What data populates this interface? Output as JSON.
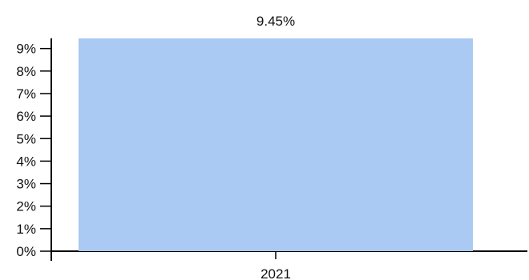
{
  "chart_data": {
    "type": "bar",
    "categories": [
      "2021"
    ],
    "values": [
      9.45
    ],
    "data_labels": [
      "9.45%"
    ],
    "title": "",
    "xlabel": "",
    "ylabel": "",
    "ylim": [
      0,
      9.45
    ],
    "y_ticks": [
      {
        "value": 0,
        "label": "0%"
      },
      {
        "value": 1,
        "label": "1%"
      },
      {
        "value": 2,
        "label": "2%"
      },
      {
        "value": 3,
        "label": "3%"
      },
      {
        "value": 4,
        "label": "4%"
      },
      {
        "value": 5,
        "label": "5%"
      },
      {
        "value": 6,
        "label": "6%"
      },
      {
        "value": 7,
        "label": "7%"
      },
      {
        "value": 8,
        "label": "8%"
      },
      {
        "value": 9,
        "label": "9%"
      }
    ],
    "grid": false,
    "legend": "none",
    "colors": {
      "bar": "#aac9f3",
      "axis": "#000000",
      "text": "#111111"
    }
  }
}
